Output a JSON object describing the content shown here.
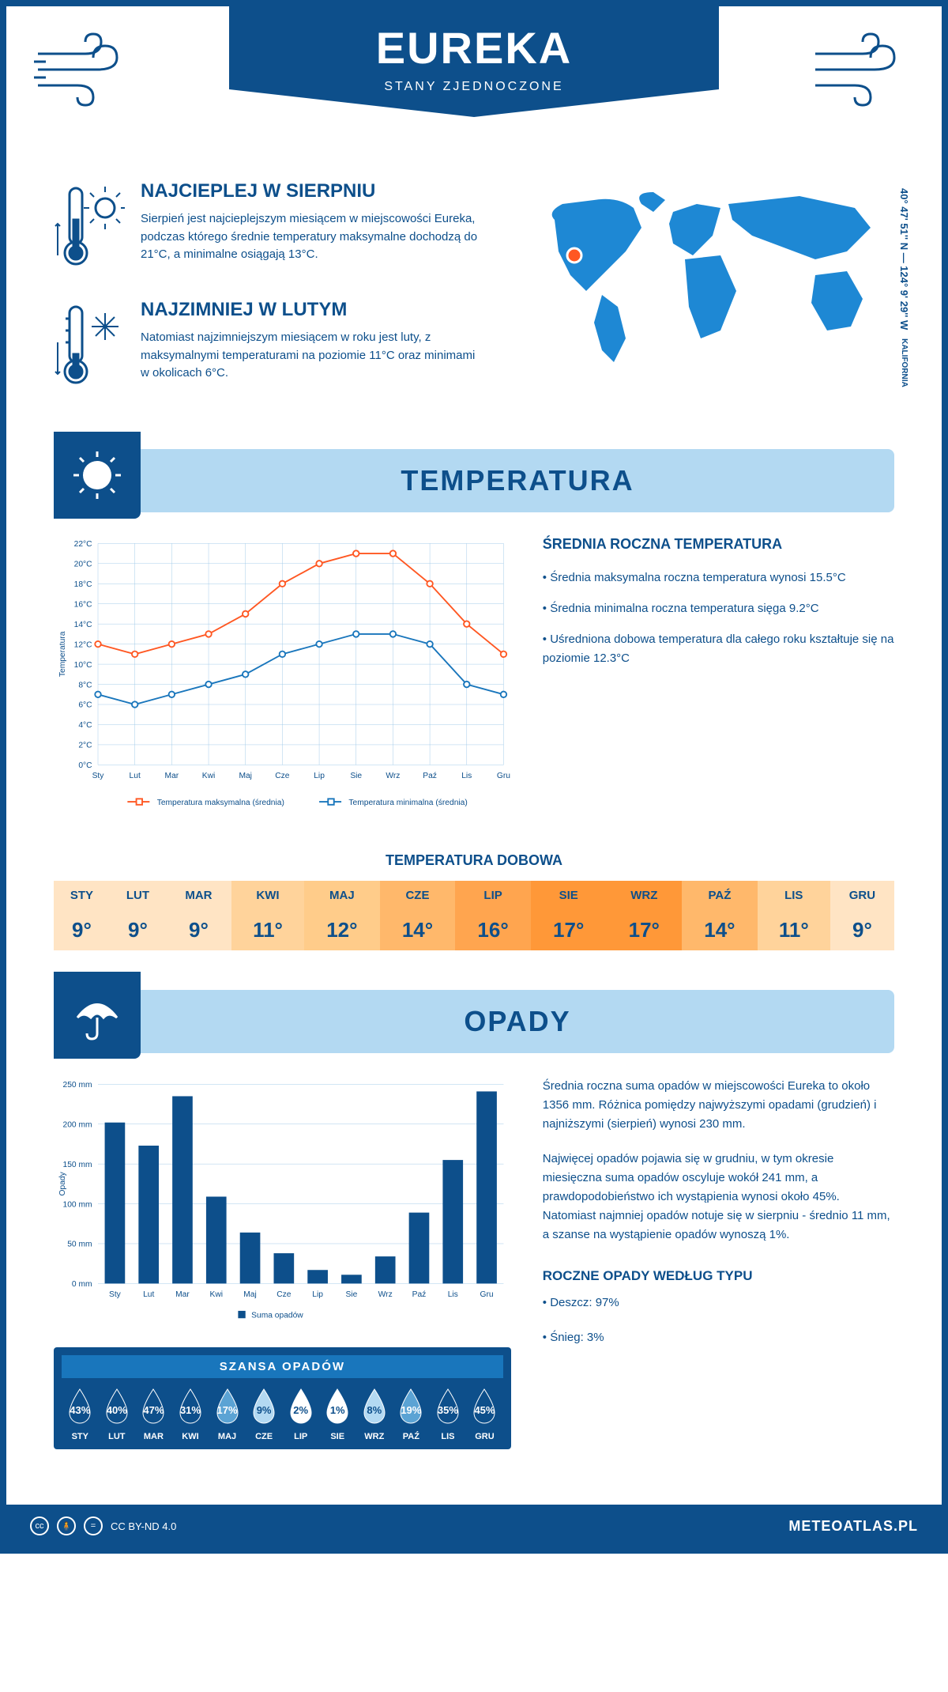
{
  "header": {
    "title": "EUREKA",
    "subtitle": "STANY ZJEDNOCZONE"
  },
  "coords": {
    "text": "40° 47' 51'' N — 124° 9' 29'' W",
    "region": "KALIFORNIA"
  },
  "summaries": {
    "warm": {
      "title": "NAJCIEPLEJ W SIERPNIU",
      "text": "Sierpień jest najcieplejszym miesiącem w miejscowości Eureka, podczas którego średnie temperatury maksymalne dochodzą do 21°C, a minimalne osiągają 13°C."
    },
    "cold": {
      "title": "NAJZIMNIEJ W LUTYM",
      "text": "Natomiast najzimniejszym miesiącem w roku jest luty, z maksymalnymi temperaturami na poziomie 11°C oraz minimami w okolicach 6°C."
    }
  },
  "sections": {
    "temp": "TEMPERATURA",
    "precip": "OPADY"
  },
  "months": [
    "Sty",
    "Lut",
    "Mar",
    "Kwi",
    "Maj",
    "Cze",
    "Lip",
    "Sie",
    "Wrz",
    "Paź",
    "Lis",
    "Gru"
  ],
  "months_upper": [
    "STY",
    "LUT",
    "MAR",
    "KWI",
    "MAJ",
    "CZE",
    "LIP",
    "SIE",
    "WRZ",
    "PAŹ",
    "LIS",
    "GRU"
  ],
  "temp_chart": {
    "type": "line",
    "ylabel": "Temperatura",
    "ylim": [
      0,
      22
    ],
    "ytick_step": 2,
    "ytick_suffix": "°C",
    "max_series": {
      "label": "Temperatura maksymalna (średnia)",
      "color": "#ff5722",
      "values": [
        12,
        11,
        12,
        13,
        15,
        18,
        20,
        21,
        21,
        18,
        14,
        11
      ]
    },
    "min_series": {
      "label": "Temperatura minimalna (średnia)",
      "color": "#1976bc",
      "values": [
        7,
        6,
        7,
        8,
        9,
        11,
        12,
        13,
        13,
        12,
        8,
        7
      ]
    },
    "grid_color": "#9ec8e8",
    "background_color": "#ffffff"
  },
  "temp_info": {
    "title": "ŚREDNIA ROCZNA TEMPERATURA",
    "points": [
      "• Średnia maksymalna roczna temperatura wynosi 15.5°C",
      "• Średnia minimalna roczna temperatura sięga 9.2°C",
      "• Uśredniona dobowa temperatura dla całego roku kształtuje się na poziomie 12.3°C"
    ]
  },
  "daily_temp": {
    "title": "TEMPERATURA DOBOWA",
    "values": [
      "9°",
      "9°",
      "9°",
      "11°",
      "12°",
      "14°",
      "16°",
      "17°",
      "17°",
      "14°",
      "11°",
      "9°"
    ],
    "colors": [
      "#ffe4c4",
      "#ffe4c4",
      "#ffe4c4",
      "#ffd39b",
      "#ffcc8a",
      "#ffb86b",
      "#ffa54f",
      "#ff9838",
      "#ff9838",
      "#ffb86b",
      "#ffd39b",
      "#ffe4c4"
    ]
  },
  "precip_chart": {
    "type": "bar",
    "ylabel": "Opady",
    "ylim": [
      0,
      250
    ],
    "ytick_step": 50,
    "ytick_suffix": " mm",
    "values": [
      202,
      173,
      235,
      109,
      64,
      38,
      17,
      11,
      34,
      89,
      155,
      241
    ],
    "bar_color": "#0d4f8b",
    "grid_color": "#9ec8e8",
    "legend": "Suma opadów"
  },
  "precip_info": {
    "p1": "Średnia roczna suma opadów w miejscowości Eureka to około 1356 mm. Różnica pomiędzy najwyższymi opadami (grudzień) i najniższymi (sierpień) wynosi 230 mm.",
    "p2": "Najwięcej opadów pojawia się w grudniu, w tym okresie miesięczna suma opadów oscyluje wokół 241 mm, a prawdopodobieństwo ich wystąpienia wynosi około 45%. Natomiast najmniej opadów notuje się w sierpniu - średnio 11 mm, a szanse na wystąpienie opadów wynoszą 1%.",
    "type_title": "ROCZNE OPADY WEDŁUG TYPU",
    "types": [
      "• Deszcz: 97%",
      "• Śnieg: 3%"
    ]
  },
  "chance": {
    "title": "SZANSA OPADÓW",
    "values": [
      43,
      40,
      47,
      31,
      17,
      9,
      2,
      1,
      8,
      19,
      35,
      45
    ]
  },
  "footer": {
    "license": "CC BY-ND 4.0",
    "site": "METEOATLAS.PL"
  },
  "colors": {
    "primary": "#0d4f8b",
    "light": "#b3d9f2",
    "accent_orange": "#ff5722"
  }
}
